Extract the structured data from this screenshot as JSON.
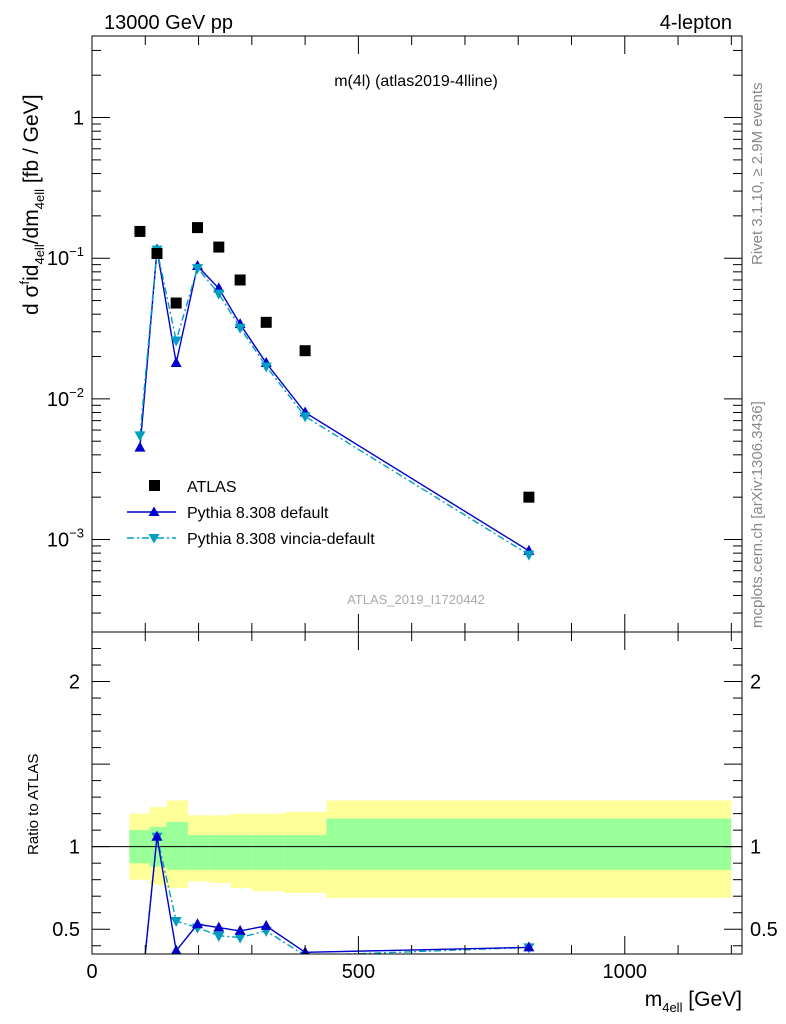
{
  "header": {
    "left": "13000 GeV pp",
    "right": "4-lepton"
  },
  "side_labels": {
    "top": "Rivet 3.1.10, ≥ 2.9M events",
    "bottom": "mcplots.cern.ch [arXiv:1306.3436]"
  },
  "chart_data": [
    {
      "type": "scatter",
      "title": "m(4l) (atlas2019-4lline)",
      "watermark": "ATLAS_2019_I1720442",
      "ylabel": {
        "main": "d σ",
        "sup": "f",
        "mid": "id",
        "sub1": "4",
        "sub1b": "ell",
        "tail": "/dm",
        "sub2": "4ell",
        "unit": " [fb / GeV]"
      },
      "xlim": [
        0,
        1220
      ],
      "ylim": [
        0.00022,
        3.8
      ],
      "yscale": "log",
      "y_ticks": [
        {
          "value": 1,
          "label": "1"
        },
        {
          "value": 0.1,
          "base": "10",
          "exp": "−1"
        },
        {
          "value": 0.01,
          "base": "10",
          "exp": "−2"
        },
        {
          "value": 0.001,
          "base": "10",
          "exp": "−3"
        }
      ],
      "legend": {
        "placement": "bottom-left"
      },
      "series": [
        {
          "name": "ATLAS",
          "marker": "square",
          "color": "#000000",
          "x": [
            90,
            122,
            158,
            198,
            238,
            278,
            327,
            400,
            820
          ],
          "y": [
            0.155,
            0.108,
            0.048,
            0.165,
            0.12,
            0.07,
            0.035,
            0.022,
            0.002
          ]
        },
        {
          "name": "Pythia 8.308 default",
          "marker": "triangle-up",
          "line": "solid",
          "color": "#0000cc",
          "x": [
            90,
            122,
            158,
            198,
            238,
            278,
            327,
            400,
            820
          ],
          "y": [
            0.0045,
            0.115,
            0.018,
            0.088,
            0.061,
            0.034,
            0.018,
            0.008,
            0.00083
          ]
        },
        {
          "name": "Pythia 8.308 vincia-default",
          "marker": "triangle-down",
          "line": "dashdot",
          "color": "#009fc0",
          "x": [
            90,
            122,
            158,
            198,
            238,
            278,
            327,
            400,
            820
          ],
          "y": [
            0.0055,
            0.115,
            0.026,
            0.085,
            0.056,
            0.032,
            0.017,
            0.0075,
            0.00078
          ]
        }
      ]
    },
    {
      "type": "line",
      "ylabel": "Ratio to ATLAS",
      "xlabel": {
        "main": "m",
        "sub": "4ell",
        "unit": " [GeV]"
      },
      "xlim": [
        0,
        1220
      ],
      "ylim": [
        0.35,
        2.3
      ],
      "x_ticks": [
        0,
        500,
        1000
      ],
      "y_ticks": [
        0.5,
        1,
        2
      ],
      "bands": {
        "edges": [
          70,
          108,
          140,
          180,
          220,
          260,
          300,
          360,
          440,
          1200
        ],
        "inner": [
          [
            0.9,
            1.1
          ],
          [
            0.88,
            1.12
          ],
          [
            0.86,
            1.15
          ],
          [
            0.86,
            1.07
          ],
          [
            0.86,
            1.07
          ],
          [
            0.86,
            1.07
          ],
          [
            0.86,
            1.07
          ],
          [
            0.86,
            1.07
          ],
          [
            0.86,
            1.17
          ]
        ],
        "outer": [
          [
            0.8,
            1.2
          ],
          [
            0.77,
            1.24
          ],
          [
            0.75,
            1.28
          ],
          [
            0.79,
            1.19
          ],
          [
            0.78,
            1.19
          ],
          [
            0.75,
            1.2
          ],
          [
            0.73,
            1.2
          ],
          [
            0.72,
            1.21
          ],
          [
            0.69,
            1.28
          ]
        ],
        "inner_color": "#99ff99",
        "outer_color": "#ffff99"
      },
      "series": [
        {
          "name": "Pythia 8.308 default",
          "marker": "triangle-up",
          "line": "solid",
          "color": "#0000cc",
          "x": [
            90,
            122,
            158,
            198,
            238,
            278,
            327,
            400,
            820
          ],
          "y": [
            0.03,
            1.06,
            0.37,
            0.53,
            0.51,
            0.49,
            0.52,
            0.36,
            0.39
          ]
        },
        {
          "name": "Pythia 8.308 vincia-default",
          "marker": "triangle-down",
          "line": "dashdot",
          "color": "#009fc0",
          "x": [
            90,
            122,
            158,
            198,
            238,
            278,
            327,
            400,
            820
          ],
          "y": [
            0.035,
            1.06,
            0.55,
            0.51,
            0.46,
            0.45,
            0.49,
            0.34,
            0.39
          ]
        }
      ]
    }
  ]
}
